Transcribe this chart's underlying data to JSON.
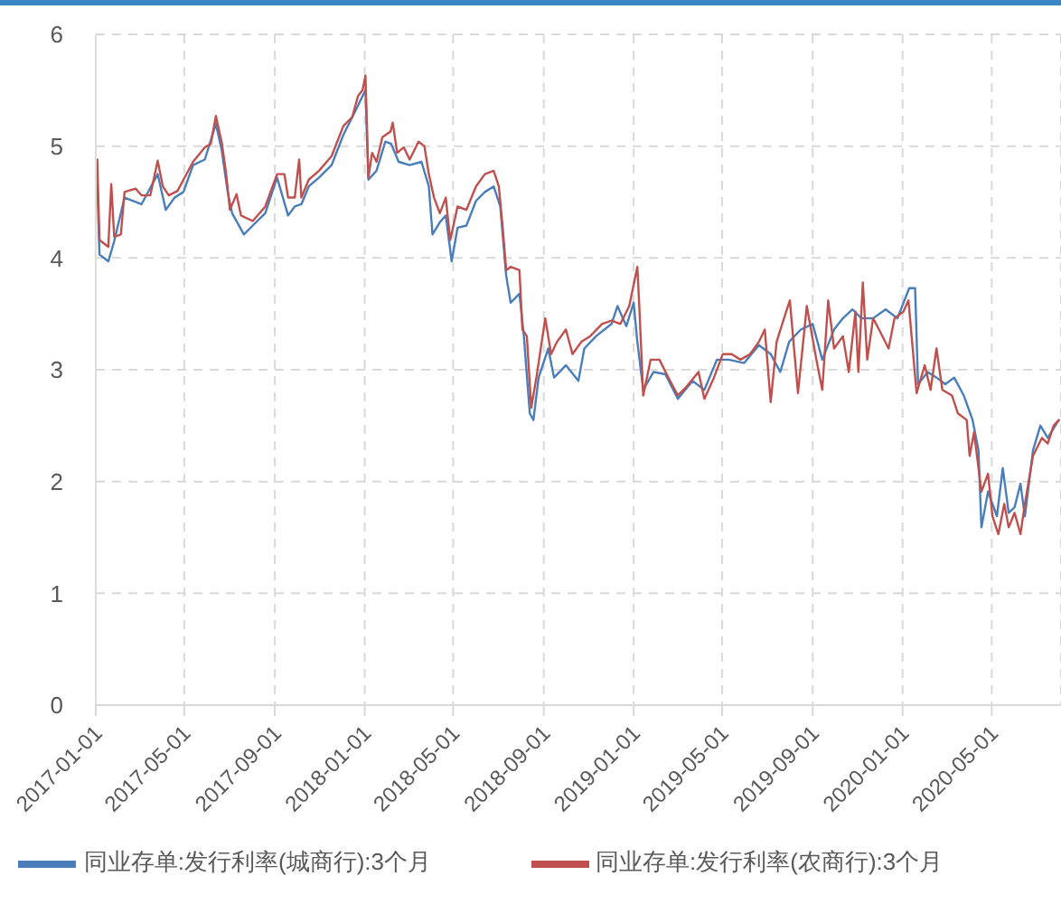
{
  "chart_data": {
    "type": "line",
    "xlim": [
      "2017-01-01",
      "2020-08-03"
    ],
    "xticks": [
      "2017-01-01",
      "2017-05-01",
      "2017-09-01",
      "2018-01-01",
      "2018-05-01",
      "2018-09-01",
      "2019-01-01",
      "2019-05-01",
      "2019-09-01",
      "2020-01-01",
      "2020-05-01"
    ],
    "ylim": [
      0,
      6
    ],
    "yticks": [
      0,
      1,
      2,
      3,
      4,
      5,
      6
    ],
    "grid": true,
    "legend": "bottom",
    "marker": "none",
    "line_style": "solid",
    "series": [
      {
        "name": "同业存单:发行利率(城商行):3个月",
        "color": "#4a7ebb",
        "x": [
          "2017-01-03",
          "2017-01-06",
          "2017-01-18",
          "2017-01-26",
          "2017-02-09",
          "2017-03-04",
          "2017-03-26",
          "2017-04-06",
          "2017-04-18",
          "2017-04-30",
          "2017-05-13",
          "2017-05-29",
          "2017-06-13",
          "2017-06-21",
          "2017-06-29",
          "2017-07-05",
          "2017-07-21",
          "2017-08-02",
          "2017-08-19",
          "2017-09-04",
          "2017-09-19",
          "2017-09-28",
          "2017-10-07",
          "2017-10-17",
          "2017-10-31",
          "2017-11-17",
          "2017-12-03",
          "2017-12-19",
          "2017-12-27",
          "2018-01-02",
          "2018-01-06",
          "2018-01-17",
          "2018-01-29",
          "2018-02-06",
          "2018-02-16",
          "2018-03-03",
          "2018-03-19",
          "2018-03-29",
          "2018-04-03",
          "2018-04-13",
          "2018-04-21",
          "2018-04-29",
          "2018-05-07",
          "2018-05-19",
          "2018-06-01",
          "2018-06-13",
          "2018-06-25",
          "2018-07-04",
          "2018-07-12",
          "2018-07-18",
          "2018-07-30",
          "2018-08-05",
          "2018-08-13",
          "2018-08-18",
          "2018-08-25",
          "2018-09-07",
          "2018-09-15",
          "2018-10-01",
          "2018-10-18",
          "2018-10-26",
          "2018-11-11",
          "2018-12-02",
          "2018-12-10",
          "2018-12-22",
          "2019-01-01",
          "2019-01-06",
          "2019-01-14",
          "2019-01-28",
          "2019-02-13",
          "2019-03-02",
          "2019-03-22",
          "2019-04-07",
          "2019-04-24",
          "2019-05-10",
          "2019-05-31",
          "2019-06-20",
          "2019-07-06",
          "2019-07-19",
          "2019-07-31",
          "2019-08-16",
          "2019-09-01",
          "2019-09-14",
          "2019-09-30",
          "2019-10-12",
          "2019-10-25",
          "2019-11-06",
          "2019-11-22",
          "2019-12-09",
          "2019-12-25",
          "2020-01-10",
          "2020-01-18",
          "2020-01-22",
          "2020-02-04",
          "2020-02-16",
          "2020-02-28",
          "2020-03-11",
          "2020-03-24",
          "2020-04-05",
          "2020-04-13",
          "2020-04-17",
          "2020-04-26",
          "2020-05-08",
          "2020-05-16",
          "2020-05-24",
          "2020-06-01",
          "2020-06-09",
          "2020-06-15",
          "2020-06-26",
          "2020-07-06",
          "2020-07-16",
          "2020-07-31"
        ],
        "values": [
          4.66,
          4.03,
          3.97,
          4.15,
          4.54,
          4.48,
          4.75,
          4.43,
          4.54,
          4.59,
          4.83,
          4.88,
          5.2,
          4.96,
          4.59,
          4.4,
          4.21,
          4.29,
          4.4,
          4.72,
          4.38,
          4.46,
          4.48,
          4.64,
          4.72,
          4.83,
          5.1,
          5.31,
          5.42,
          5.5,
          4.7,
          4.78,
          5.04,
          5.02,
          4.86,
          4.83,
          4.86,
          4.64,
          4.21,
          4.32,
          4.38,
          3.97,
          4.27,
          4.29,
          4.51,
          4.59,
          4.64,
          4.46,
          3.84,
          3.6,
          3.68,
          3.3,
          2.61,
          2.55,
          2.93,
          3.19,
          2.93,
          3.04,
          2.9,
          3.19,
          3.3,
          3.41,
          3.57,
          3.39,
          3.6,
          3.25,
          2.82,
          2.98,
          2.96,
          2.74,
          2.9,
          2.82,
          3.09,
          3.09,
          3.06,
          3.22,
          3.14,
          2.98,
          3.25,
          3.36,
          3.41,
          3.09,
          3.36,
          3.46,
          3.54,
          3.46,
          3.46,
          3.54,
          3.46,
          3.73,
          3.73,
          2.87,
          2.98,
          2.93,
          2.87,
          2.93,
          2.77,
          2.55,
          2.28,
          1.59,
          1.91,
          1.69,
          2.12,
          1.72,
          1.77,
          1.98,
          1.69,
          2.28,
          2.5,
          2.39,
          2.55
        ]
      },
      {
        "name": "同业存单:发行利率(农商行):3个月",
        "color": "#c0504d",
        "x": [
          "2017-01-03",
          "2017-01-06",
          "2017-01-18",
          "2017-01-22",
          "2017-01-26",
          "2017-02-04",
          "2017-02-09",
          "2017-02-24",
          "2017-03-04",
          "2017-03-16",
          "2017-03-26",
          "2017-04-02",
          "2017-04-10",
          "2017-04-22",
          "2017-04-30",
          "2017-05-13",
          "2017-05-29",
          "2017-06-06",
          "2017-06-13",
          "2017-06-21",
          "2017-06-27",
          "2017-07-02",
          "2017-07-11",
          "2017-07-17",
          "2017-08-02",
          "2017-08-19",
          "2017-09-04",
          "2017-09-14",
          "2017-09-19",
          "2017-09-28",
          "2017-10-04",
          "2017-10-07",
          "2017-10-17",
          "2017-10-31",
          "2017-11-17",
          "2017-12-03",
          "2017-12-15",
          "2017-12-23",
          "2017-12-29",
          "2018-01-02",
          "2018-01-06",
          "2018-01-11",
          "2018-01-17",
          "2018-01-25",
          "2018-02-05",
          "2018-02-08",
          "2018-02-14",
          "2018-02-23",
          "2018-03-03",
          "2018-03-15",
          "2018-03-23",
          "2018-03-29",
          "2018-04-05",
          "2018-04-13",
          "2018-04-21",
          "2018-04-27",
          "2018-05-07",
          "2018-05-19",
          "2018-06-01",
          "2018-06-13",
          "2018-06-25",
          "2018-07-02",
          "2018-07-07",
          "2018-07-12",
          "2018-07-18",
          "2018-07-30",
          "2018-08-03",
          "2018-08-09",
          "2018-08-15",
          "2018-08-22",
          "2018-09-03",
          "2018-09-11",
          "2018-09-19",
          "2018-10-01",
          "2018-10-10",
          "2018-10-22",
          "2018-11-03",
          "2018-11-19",
          "2018-12-02",
          "2018-12-14",
          "2018-12-26",
          "2019-01-06",
          "2019-01-09",
          "2019-01-14",
          "2019-01-24",
          "2019-02-05",
          "2019-02-17",
          "2019-03-02",
          "2019-03-14",
          "2019-03-30",
          "2019-04-07",
          "2019-04-20",
          "2019-05-02",
          "2019-05-14",
          "2019-05-26",
          "2019-06-08",
          "2019-06-20",
          "2019-06-28",
          "2019-07-06",
          "2019-07-14",
          "2019-07-27",
          "2019-08-01",
          "2019-08-12",
          "2019-08-24",
          "2019-09-06",
          "2019-09-14",
          "2019-09-22",
          "2019-09-30",
          "2019-10-12",
          "2019-10-20",
          "2019-10-29",
          "2019-11-02",
          "2019-11-08",
          "2019-11-14",
          "2019-11-22",
          "2019-11-30",
          "2019-12-13",
          "2019-12-21",
          "2020-01-02",
          "2020-01-09",
          "2020-01-20",
          "2020-01-31",
          "2020-02-08",
          "2020-02-16",
          "2020-02-24",
          "2020-03-08",
          "2020-03-16",
          "2020-03-28",
          "2020-04-01",
          "2020-04-07",
          "2020-04-17",
          "2020-04-26",
          "2020-05-02",
          "2020-05-10",
          "2020-05-18",
          "2020-05-24",
          "2020-06-01",
          "2020-06-09",
          "2020-06-15",
          "2020-06-26",
          "2020-07-08",
          "2020-07-16",
          "2020-07-24",
          "2020-07-31"
        ],
        "values": [
          4.88,
          4.16,
          4.1,
          4.66,
          4.19,
          4.21,
          4.59,
          4.62,
          4.56,
          4.56,
          4.87,
          4.64,
          4.56,
          4.6,
          4.7,
          4.86,
          4.99,
          5.02,
          5.27,
          5.03,
          4.75,
          4.43,
          4.57,
          4.38,
          4.33,
          4.46,
          4.75,
          4.75,
          4.54,
          4.54,
          4.88,
          4.54,
          4.7,
          4.78,
          4.91,
          5.18,
          5.26,
          5.45,
          5.5,
          5.63,
          4.72,
          4.94,
          4.86,
          5.08,
          5.13,
          5.21,
          4.94,
          4.99,
          4.88,
          5.04,
          5.0,
          4.75,
          4.54,
          4.4,
          4.54,
          4.16,
          4.46,
          4.43,
          4.64,
          4.75,
          4.78,
          4.64,
          4.29,
          3.89,
          3.92,
          3.89,
          3.36,
          3.3,
          2.66,
          2.93,
          3.46,
          3.14,
          3.25,
          3.36,
          3.14,
          3.25,
          3.3,
          3.41,
          3.44,
          3.41,
          3.57,
          3.92,
          3.52,
          2.77,
          3.09,
          3.09,
          2.93,
          2.77,
          2.85,
          2.98,
          2.74,
          2.93,
          3.14,
          3.14,
          3.09,
          3.14,
          3.25,
          3.36,
          2.71,
          3.25,
          3.52,
          3.62,
          2.79,
          3.57,
          3.09,
          2.82,
          3.62,
          3.19,
          3.3,
          2.98,
          3.52,
          2.98,
          3.78,
          3.09,
          3.46,
          3.36,
          3.19,
          3.46,
          3.52,
          3.62,
          2.79,
          3.04,
          2.82,
          3.19,
          2.82,
          2.77,
          2.61,
          2.55,
          2.23,
          2.44,
          1.91,
          2.07,
          1.69,
          1.53,
          1.8,
          1.59,
          1.72,
          1.53,
          1.8,
          2.23,
          2.39,
          2.34,
          2.5,
          2.55
        ]
      }
    ]
  }
}
